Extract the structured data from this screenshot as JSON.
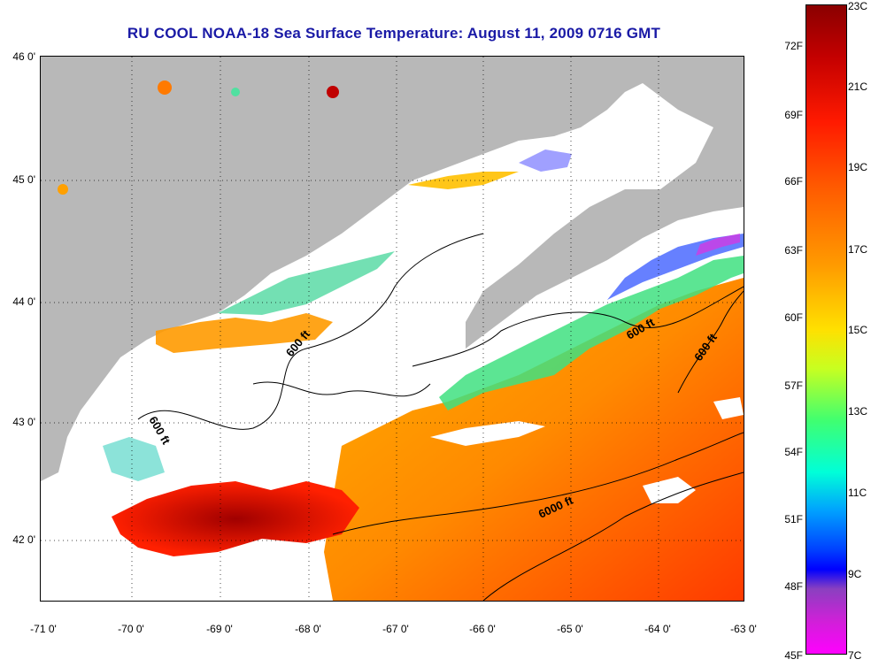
{
  "title": "RU COOL  NOAA-18  Sea Surface Temperature:  August 11, 2009 0716 GMT",
  "latitude_labels": [
    "46 0'",
    "45 0'",
    "44 0'",
    "43 0'",
    "42 0'"
  ],
  "longitude_labels": [
    "-71 0'",
    "-70 0'",
    "-69 0'",
    "-68 0'",
    "-67 0'",
    "-66 0'",
    "-65 0'",
    "-64 0'",
    "-63 0'"
  ],
  "colorbar": {
    "fahrenheit_labels": [
      "72F",
      "69F",
      "66F",
      "63F",
      "60F",
      "57F",
      "54F",
      "51F",
      "48F",
      "45F"
    ],
    "celsius_labels": [
      "23C",
      "21C",
      "19C",
      "17C",
      "15C",
      "13C",
      "11C",
      "9C",
      "7C"
    ]
  },
  "contour_labels": [
    "600 ft",
    "600 ft",
    "600 ft",
    "600 ft",
    "6000 ft"
  ],
  "colors": {
    "land": "#b8b8b8",
    "cloud": "#ffffff",
    "title": "#1a1aa6"
  }
}
